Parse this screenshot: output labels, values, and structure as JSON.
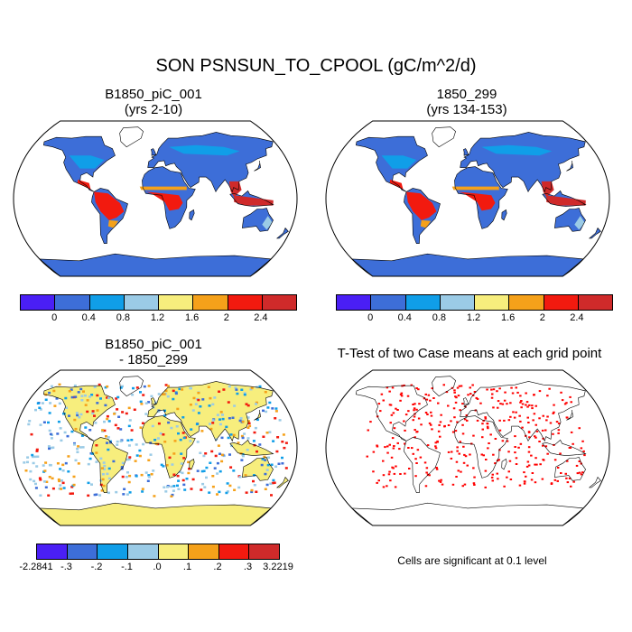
{
  "title": "SON PSNSUN_TO_CPOOL (gC/m^2/d)",
  "panels": {
    "top_left": {
      "line1": "B1850_piC_001",
      "line2": "(yrs 2-10)"
    },
    "top_right": {
      "line1": "1850_299",
      "line2": "(yrs 134-153)"
    },
    "bottom_left": {
      "line1": "B1850_piC_001",
      "line2": "- 1850_299"
    },
    "bottom_right": {
      "line1": "T-Test of two Case means at each grid point"
    }
  },
  "colorbar_abs": {
    "colors": [
      "#4a1ff5",
      "#3d6ed8",
      "#109ee8",
      "#9bcbe6",
      "#f7ee7d",
      "#f5a11a",
      "#f21a0f",
      "#cf2a2a"
    ],
    "labels": [
      "0",
      "0.4",
      "0.8",
      "1.2",
      "1.6",
      "2",
      "2.4"
    ]
  },
  "colorbar_diff": {
    "colors": [
      "#4a1ff5",
      "#3d6ed8",
      "#109ee8",
      "#9bcbe6",
      "#f7ee7d",
      "#f5a11a",
      "#f21a0f",
      "#cf2a2a"
    ],
    "labels": [
      "-2.2841",
      "-.3",
      "-.2",
      "-.1",
      ".0",
      ".1",
      ".2",
      ".3",
      "3.2219"
    ]
  },
  "significance_note": "Cells are significant at 0.1 level"
}
